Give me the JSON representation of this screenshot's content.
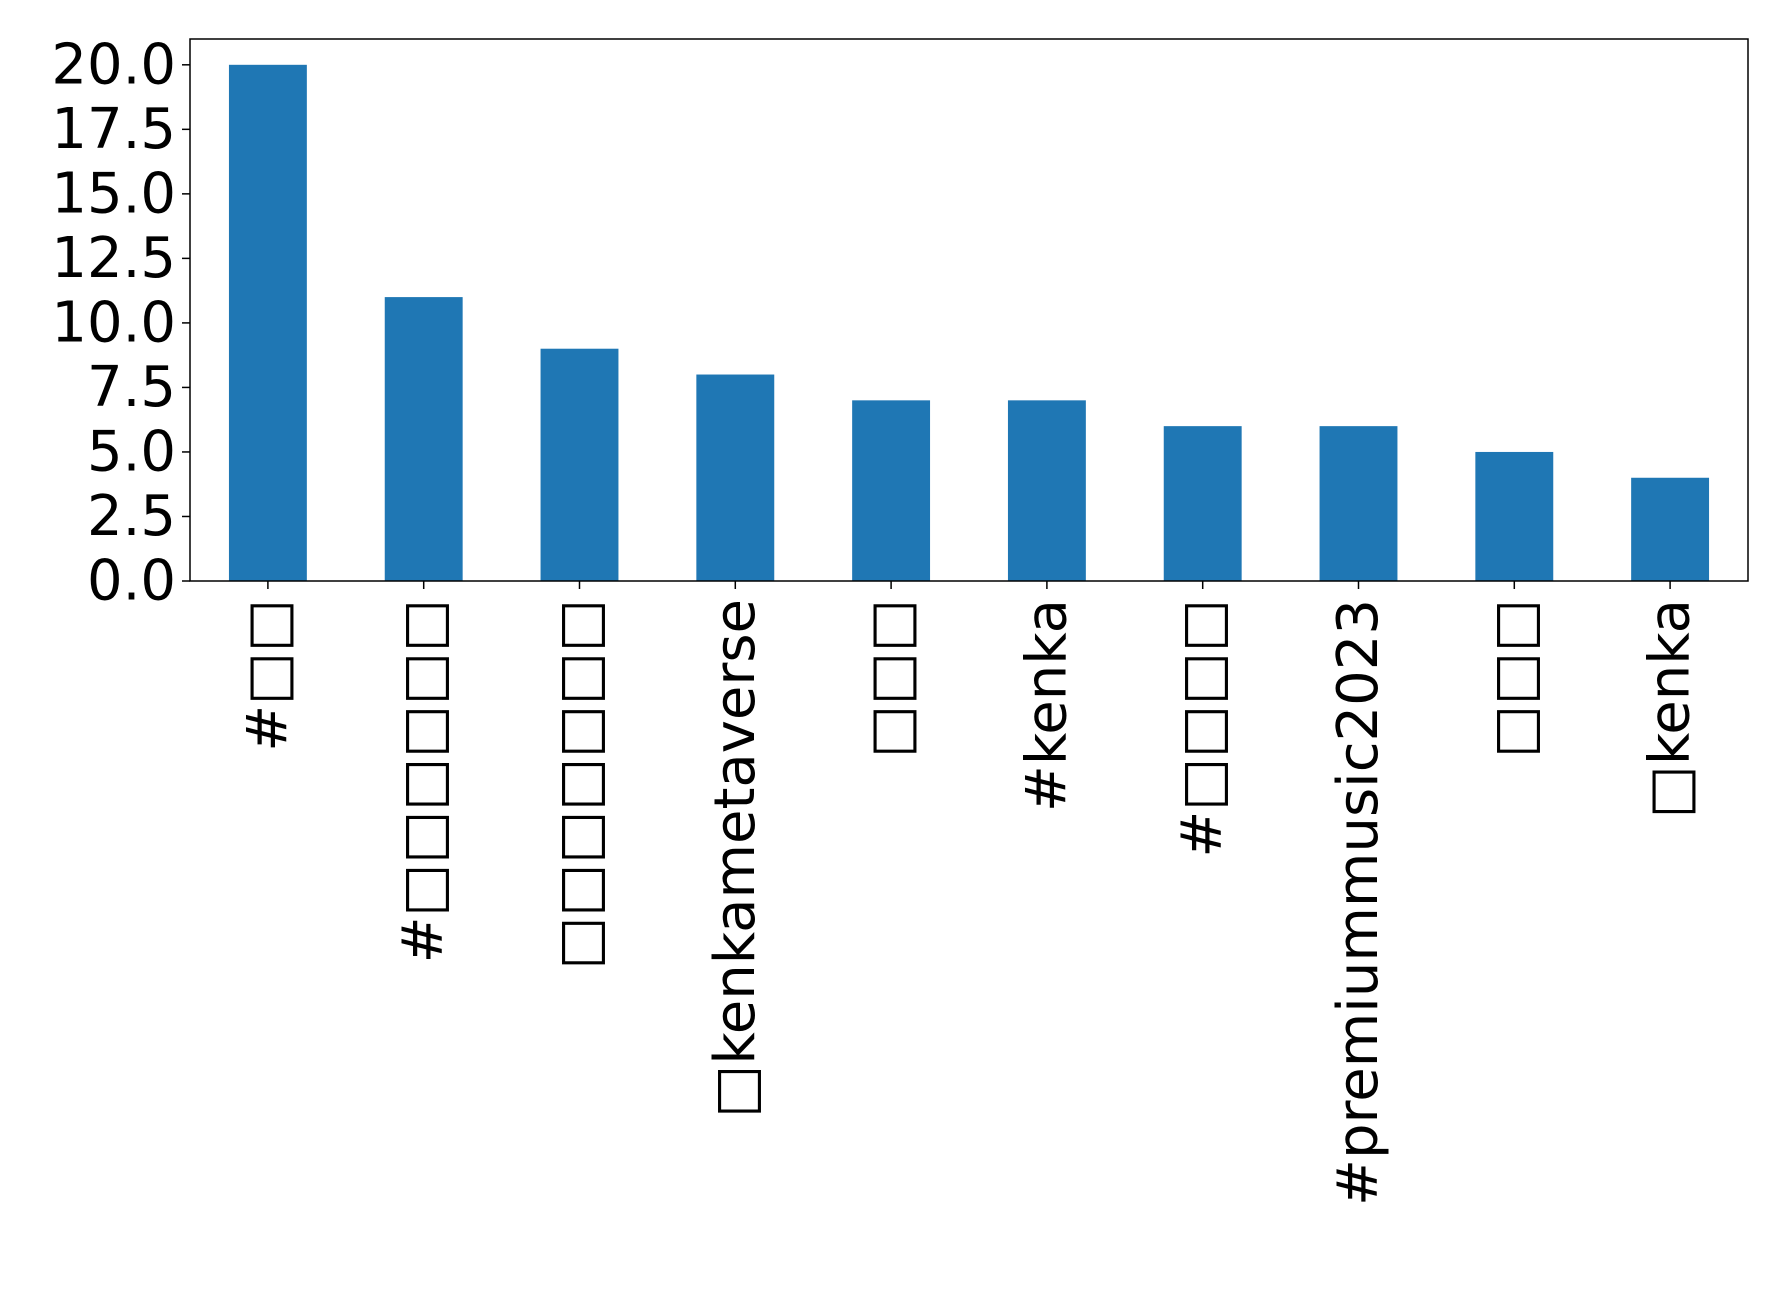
{
  "chart_data": {
    "type": "bar",
    "title": "",
    "xlabel": "",
    "ylabel": "",
    "categories": [
      "#□□",
      "#□□□□□□",
      "□□□□□□□",
      "□kenkametaverse",
      "□□□",
      "#kenka",
      "#□□□□",
      "#premiummusic2023",
      "□□□",
      "□kenka"
    ],
    "values": [
      20,
      11,
      9,
      8,
      7,
      7,
      6,
      6,
      5,
      4
    ],
    "ylim": [
      0,
      21
    ],
    "yticks": [
      "0.0",
      "2.5",
      "5.0",
      "7.5",
      "10.0",
      "12.5",
      "15.0",
      "17.5",
      "20.0"
    ],
    "bar_color": "#1f77b4",
    "grid": false,
    "legend": "none"
  }
}
